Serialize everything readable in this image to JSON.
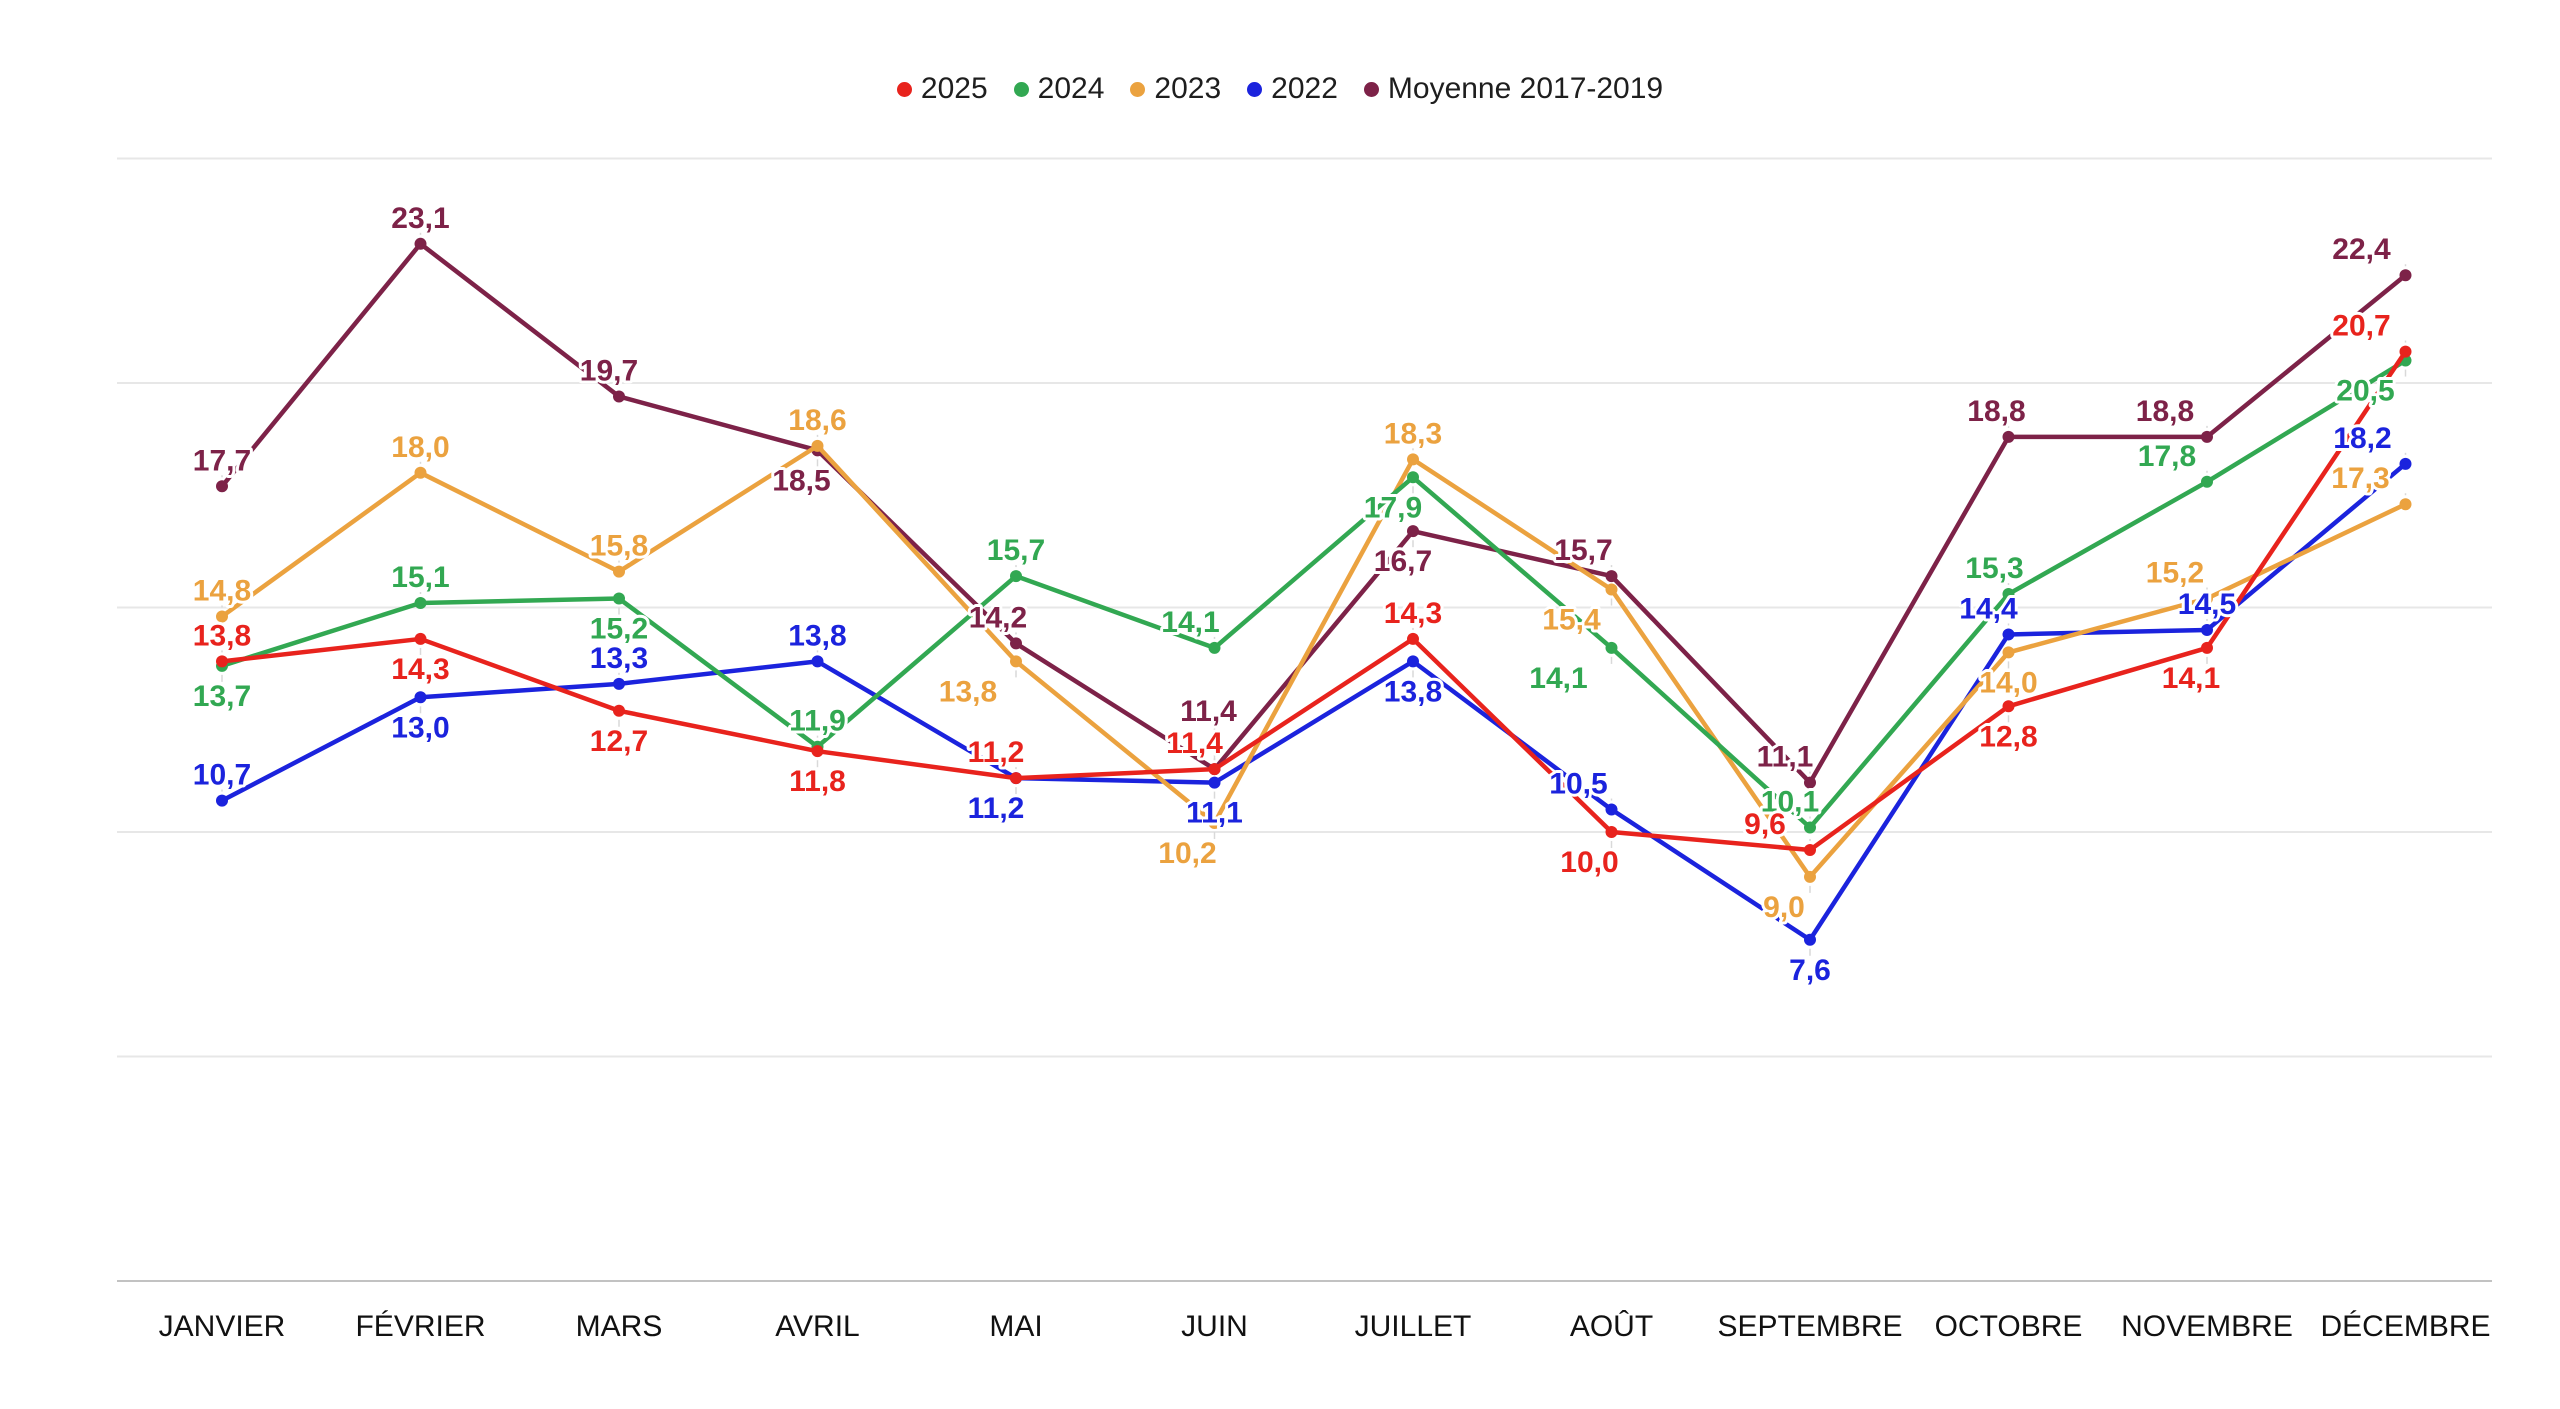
{
  "chart_data": {
    "type": "line",
    "categories": [
      "JANVIER",
      "FÉVRIER",
      "MARS",
      "AVRIL",
      "MAI",
      "JUIN",
      "JUILLET",
      "AOÛT",
      "SEPTEMBRE",
      "OCTOBRE",
      "NOVEMBRE",
      "DÉCEMBRE"
    ],
    "series": [
      {
        "name": "2025",
        "color": "#e8231d",
        "values": [
          13.8,
          14.3,
          12.7,
          11.8,
          11.2,
          11.4,
          14.3,
          10.0,
          9.6,
          12.8,
          14.1,
          20.7
        ]
      },
      {
        "name": "2024",
        "color": "#32a852",
        "values": [
          13.7,
          15.1,
          15.2,
          11.9,
          15.7,
          14.1,
          17.9,
          14.1,
          10.1,
          15.3,
          17.8,
          20.5
        ]
      },
      {
        "name": "2023",
        "color": "#eba23f",
        "values": [
          14.8,
          18.0,
          15.8,
          18.6,
          13.8,
          10.2,
          18.3,
          15.4,
          9.0,
          14.0,
          15.2,
          17.3
        ]
      },
      {
        "name": "2022",
        "color": "#1b23dd",
        "values": [
          10.7,
          13.0,
          13.3,
          13.8,
          11.2,
          11.1,
          13.8,
          10.5,
          7.6,
          14.4,
          14.5,
          18.2
        ]
      },
      {
        "name": "Moyenne 2017-2019",
        "color": "#7d2248",
        "values": [
          17.7,
          23.1,
          19.7,
          18.5,
          14.2,
          11.4,
          16.7,
          15.7,
          11.1,
          18.8,
          18.8,
          22.4
        ]
      }
    ],
    "ylim": [
      0,
      28.5
    ],
    "yticks": [
      0,
      5,
      10,
      15,
      20,
      25
    ],
    "y_tick_labels_visible": false,
    "grid": "horizontal",
    "legend_position": "top",
    "decimal_separator": ","
  }
}
